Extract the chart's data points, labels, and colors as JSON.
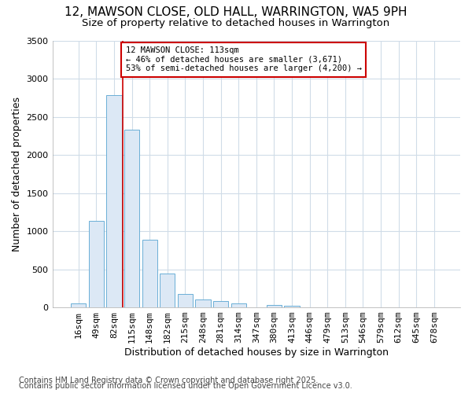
{
  "title": "12, MAWSON CLOSE, OLD HALL, WARRINGTON, WA5 9PH",
  "subtitle": "Size of property relative to detached houses in Warrington",
  "xlabel": "Distribution of detached houses by size in Warrington",
  "ylabel": "Number of detached properties",
  "bar_color": "#dce8f5",
  "bar_edge_color": "#6aaed6",
  "categories": [
    "16sqm",
    "49sqm",
    "82sqm",
    "115sqm",
    "148sqm",
    "182sqm",
    "215sqm",
    "248sqm",
    "281sqm",
    "314sqm",
    "347sqm",
    "380sqm",
    "413sqm",
    "446sqm",
    "479sqm",
    "513sqm",
    "546sqm",
    "579sqm",
    "612sqm",
    "645sqm",
    "678sqm"
  ],
  "values": [
    55,
    1130,
    2780,
    2330,
    890,
    440,
    175,
    100,
    85,
    55,
    0,
    30,
    20,
    0,
    0,
    0,
    0,
    0,
    0,
    0,
    0
  ],
  "ylim": [
    0,
    3500
  ],
  "yticks": [
    0,
    500,
    1000,
    1500,
    2000,
    2500,
    3000,
    3500
  ],
  "vline_pos": 2.5,
  "vline_color": "#cc0000",
  "annotation_text": "12 MAWSON CLOSE: 113sqm\n← 46% of detached houses are smaller (3,671)\n53% of semi-detached houses are larger (4,200) →",
  "annotation_box_color": "#ffffff",
  "annotation_box_edge": "#cc0000",
  "footer1": "Contains HM Land Registry data © Crown copyright and database right 2025.",
  "footer2": "Contains public sector information licensed under the Open Government Licence v3.0.",
  "background_color": "#ffffff",
  "grid_color": "#d0dce8",
  "title_fontsize": 11,
  "subtitle_fontsize": 9.5,
  "axis_label_fontsize": 9,
  "tick_fontsize": 8,
  "footer_fontsize": 7
}
